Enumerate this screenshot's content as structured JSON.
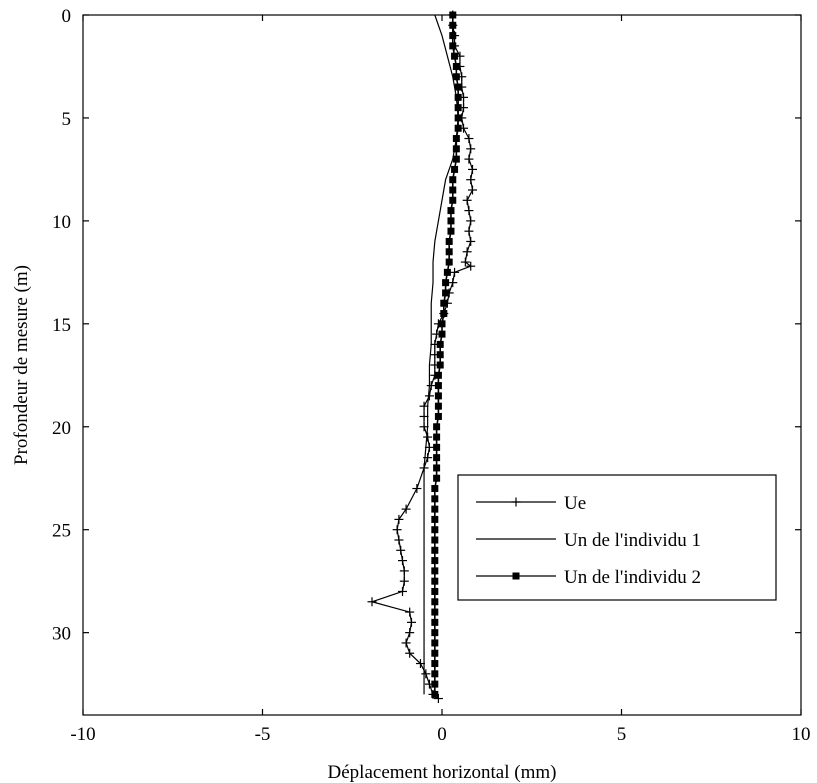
{
  "chart_data": {
    "type": "line",
    "title": "",
    "xlabel": "Déplacement horizontal (mm)",
    "ylabel": "Profondeur de mesure (m)",
    "xlim": [
      -10,
      10
    ],
    "ylim": [
      0,
      34
    ],
    "y_reversed": true,
    "x_ticks": [
      -10,
      -5,
      0,
      5,
      10
    ],
    "y_ticks": [
      0,
      5,
      10,
      15,
      20,
      25,
      30
    ],
    "grid": false,
    "legend_position": "lower-right",
    "series": [
      {
        "name": "Ue",
        "marker": "plus",
        "color": "#000000",
        "x": [
          0.3,
          0.3,
          0.35,
          0.35,
          0.5,
          0.5,
          0.55,
          0.55,
          0.6,
          0.6,
          0.55,
          0.6,
          0.75,
          0.8,
          0.75,
          0.85,
          0.8,
          0.85,
          0.7,
          0.75,
          0.8,
          0.75,
          0.8,
          0.7,
          0.65,
          0.8,
          0.35,
          0.3,
          0.2,
          0.15,
          0.05,
          -0.1,
          -0.15,
          -0.2,
          -0.2,
          -0.2,
          -0.2,
          -0.3,
          -0.35,
          -0.5,
          -0.5,
          -0.5,
          -0.4,
          -0.35,
          -0.4,
          -0.5,
          -0.7,
          -1.0,
          -1.2,
          -1.25,
          -1.2,
          -1.15,
          -1.1,
          -1.05,
          -1.05,
          -1.1,
          -1.95,
          -0.9,
          -0.85,
          -0.9,
          -1.0,
          -0.9,
          -0.6,
          -0.45,
          -0.35,
          -0.25,
          -0.1
        ],
        "y": [
          0,
          0.5,
          1,
          1.5,
          2,
          2.5,
          3,
          3.5,
          4,
          4.5,
          5,
          5.5,
          6,
          6.5,
          7,
          7.5,
          8,
          8.5,
          9,
          9.5,
          10,
          10.5,
          11,
          11.5,
          12,
          12.2,
          12.5,
          13,
          13.5,
          14,
          14.5,
          15,
          15.5,
          16,
          16.5,
          17,
          17.5,
          18,
          18.5,
          19,
          19.5,
          20,
          20.5,
          21,
          21.5,
          22,
          23,
          24,
          24.5,
          25,
          25.5,
          26,
          26.5,
          27,
          27.5,
          28,
          28.5,
          29,
          29.5,
          30,
          30.5,
          31,
          31.5,
          32,
          32.5,
          33,
          33.2
        ]
      },
      {
        "name": "Un de l'individu 1",
        "marker": "none",
        "color": "#000000",
        "x": [
          -0.2,
          0,
          0.15,
          0.3,
          0.4,
          0.45,
          0.4,
          0.3,
          0.1,
          0,
          -0.1,
          -0.2,
          -0.25,
          -0.25,
          -0.3,
          -0.3,
          -0.3,
          -0.35,
          -0.35,
          -0.4,
          -0.4,
          -0.45,
          -0.5,
          -0.5,
          -0.5,
          -0.5,
          -0.5,
          -0.5
        ],
        "y": [
          0,
          1,
          2,
          3,
          4,
          5,
          6,
          7,
          8,
          9,
          10,
          11,
          12,
          13,
          14,
          15,
          16,
          17,
          18,
          19,
          20,
          21,
          22,
          23,
          25,
          28,
          30,
          33
        ]
      },
      {
        "name": "Un de l'individu 2",
        "marker": "square",
        "color": "#000000",
        "x": [
          0.3,
          0.3,
          0.3,
          0.3,
          0.35,
          0.4,
          0.4,
          0.45,
          0.45,
          0.45,
          0.45,
          0.45,
          0.4,
          0.4,
          0.4,
          0.35,
          0.3,
          0.3,
          0.3,
          0.25,
          0.25,
          0.25,
          0.2,
          0.2,
          0.2,
          0.15,
          0.1,
          0.1,
          0.05,
          0.05,
          0,
          0,
          -0.05,
          -0.05,
          -0.05,
          -0.1,
          -0.1,
          -0.1,
          -0.1,
          -0.1,
          -0.15,
          -0.15,
          -0.15,
          -0.15,
          -0.15,
          -0.15,
          -0.2,
          -0.2,
          -0.2,
          -0.2,
          -0.2,
          -0.2,
          -0.2,
          -0.2,
          -0.2,
          -0.2,
          -0.2,
          -0.2,
          -0.2,
          -0.2,
          -0.2,
          -0.2,
          -0.2,
          -0.2,
          -0.2,
          -0.2,
          -0.2
        ],
        "y": [
          0,
          0.5,
          1,
          1.5,
          2,
          2.5,
          3,
          3.5,
          4,
          4.5,
          5,
          5.5,
          6,
          6.5,
          7,
          7.5,
          8,
          8.5,
          9,
          9.5,
          10,
          10.5,
          11,
          11.5,
          12,
          12.5,
          13,
          13.5,
          14,
          14.5,
          15,
          15.5,
          16,
          16.5,
          17,
          17.5,
          18,
          18.5,
          19,
          19.5,
          20,
          20.5,
          21,
          21.5,
          22,
          22.5,
          23,
          23.5,
          24,
          24.5,
          25,
          25.5,
          26,
          26.5,
          27,
          27.5,
          28,
          28.5,
          29,
          29.5,
          30,
          30.5,
          31,
          31.5,
          32,
          32.5,
          33
        ]
      }
    ]
  }
}
